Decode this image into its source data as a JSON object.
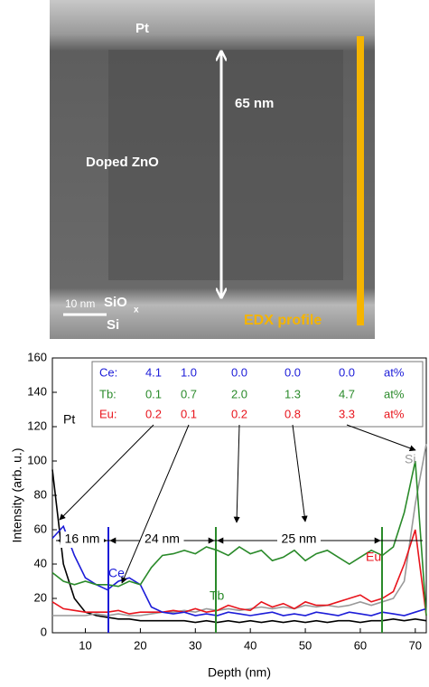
{
  "image": {
    "top_label": "Pt",
    "thickness": "65 nm",
    "layer": "Doped ZnO",
    "oxide": "SiO",
    "oxide_sub": "x",
    "substrate": "Si",
    "scale_bar": "10 nm",
    "profile_label": "EDX profile"
  },
  "chart_data": {
    "type": "line",
    "x_label": "Depth (nm)",
    "y_label": "Intensity (arb. u.)",
    "x": [
      4,
      6,
      8,
      10,
      12,
      14,
      16,
      18,
      20,
      22,
      24,
      26,
      28,
      30,
      32,
      34,
      36,
      38,
      40,
      42,
      44,
      46,
      48,
      50,
      52,
      54,
      56,
      58,
      60,
      62,
      64,
      66,
      68,
      70,
      72
    ],
    "xlim": [
      4,
      72
    ],
    "xticks": [
      10,
      20,
      30,
      40,
      50,
      60,
      70
    ],
    "ylim": [
      0,
      160
    ],
    "yticks": [
      0,
      20,
      40,
      60,
      80,
      100,
      120,
      140,
      160
    ],
    "series": [
      {
        "name": "Pt",
        "color": "#000000",
        "values": [
          95,
          40,
          20,
          12,
          10,
          9,
          8,
          8,
          7,
          7,
          7,
          7,
          7,
          6,
          7,
          6,
          7,
          6,
          7,
          6,
          7,
          6,
          7,
          6,
          7,
          6,
          7,
          7,
          6,
          7,
          7,
          8,
          7,
          8,
          7
        ]
      },
      {
        "name": "Si",
        "color": "#999999",
        "values": [
          10,
          10,
          10,
          10,
          11,
          10,
          11,
          10,
          10,
          11,
          12,
          12,
          13,
          12,
          14,
          13,
          14,
          13,
          14,
          15,
          14,
          15,
          14,
          16,
          15,
          16,
          15,
          16,
          18,
          16,
          18,
          20,
          30,
          75,
          110
        ]
      },
      {
        "name": "Eu",
        "color": "#e8141c",
        "values": [
          18,
          14,
          13,
          12,
          12,
          12,
          13,
          11,
          12,
          12,
          12,
          13,
          12,
          14,
          12,
          13,
          16,
          14,
          13,
          18,
          15,
          17,
          14,
          18,
          16,
          16,
          18,
          20,
          22,
          18,
          20,
          24,
          40,
          60,
          10
        ]
      },
      {
        "name": "Ce",
        "color": "#1c1cd8",
        "values": [
          55,
          62,
          45,
          32,
          28,
          25,
          30,
          32,
          28,
          15,
          12,
          11,
          12,
          10,
          11,
          10,
          12,
          11,
          10,
          11,
          12,
          10,
          11,
          10,
          12,
          11,
          10,
          12,
          11,
          10,
          12,
          11,
          10,
          12,
          14
        ]
      },
      {
        "name": "Tb",
        "color": "#2a8a2a",
        "values": [
          35,
          30,
          28,
          30,
          28,
          28,
          27,
          30,
          28,
          38,
          45,
          46,
          48,
          46,
          50,
          48,
          45,
          50,
          46,
          48,
          42,
          44,
          48,
          42,
          46,
          48,
          44,
          40,
          44,
          48,
          45,
          50,
          70,
          100,
          10
        ]
      }
    ],
    "segments": [
      "16 nm",
      "24 nm",
      "25 nm"
    ],
    "composition": [
      {
        "label": "Ce:",
        "color": "#1c1cd8",
        "values": [
          "4.1",
          "1.0",
          "0.0",
          "0.0",
          "0.0"
        ],
        "unit": "at%"
      },
      {
        "label": "Tb:",
        "color": "#2a8a2a",
        "values": [
          "0.1",
          "0.7",
          "2.0",
          "1.3",
          "4.7"
        ],
        "unit": "at%"
      },
      {
        "label": "Eu:",
        "color": "#e8141c",
        "values": [
          "0.2",
          "0.1",
          "0.2",
          "0.8",
          "3.3"
        ],
        "unit": "at%"
      }
    ]
  }
}
